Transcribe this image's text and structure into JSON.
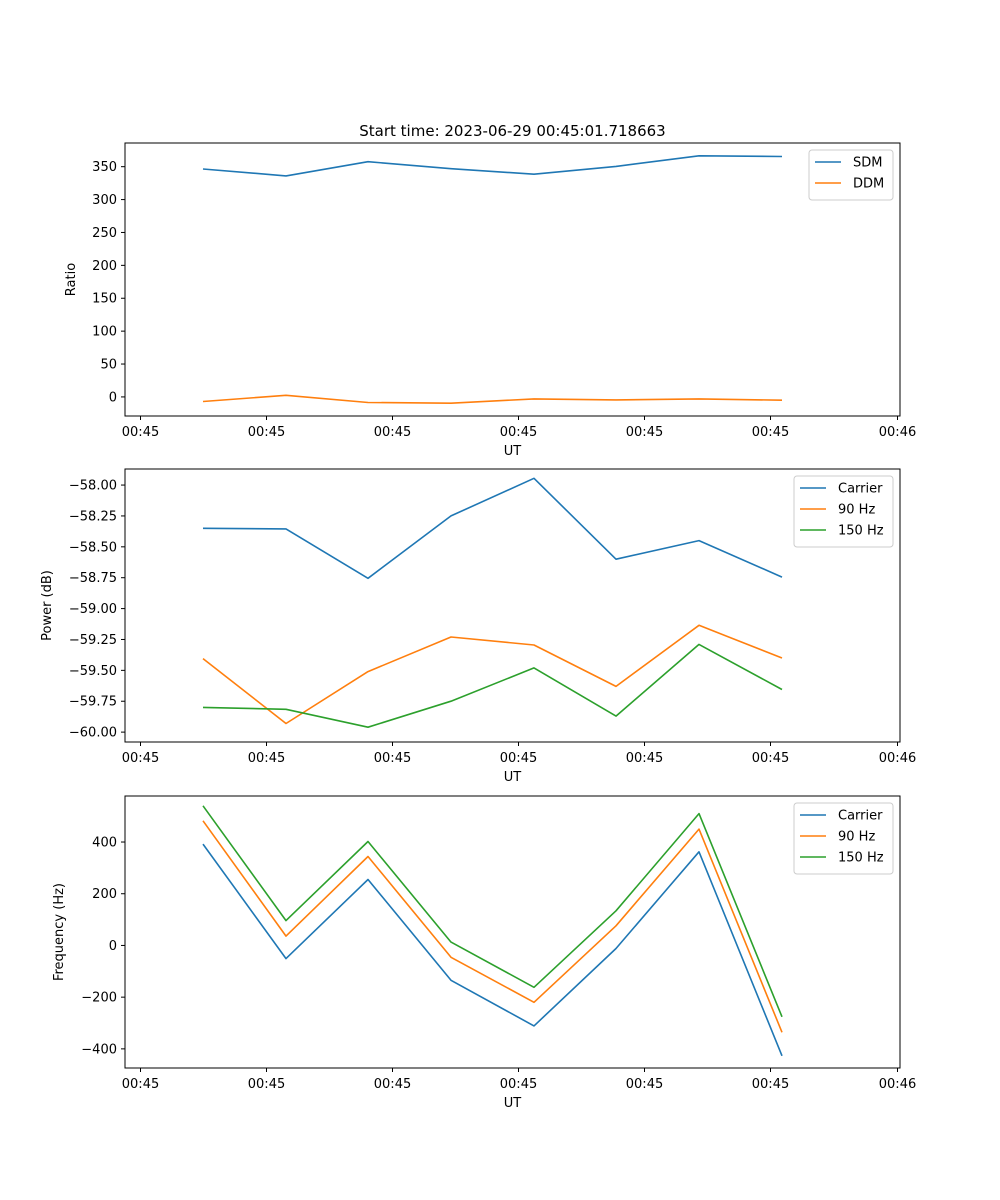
{
  "figure": {
    "title": "Start time: 2023-06-29 00:45:01.718663"
  },
  "chart_data": [
    {
      "type": "line",
      "title": "Start time: 2023-06-29 00:45:01.718663",
      "xlabel": "UT",
      "ylabel": "Ratio",
      "x_tick_labels": [
        "00:45",
        "00:45",
        "00:45",
        "00:45",
        "00:45",
        "00:45",
        "00:46"
      ],
      "y_ticks": [
        0,
        50,
        100,
        150,
        200,
        250,
        300,
        350
      ],
      "ylim": [
        -29,
        386
      ],
      "grid": false,
      "legend_position": "top-right",
      "series": [
        {
          "name": "SDM",
          "color": "#1f77b4",
          "values": [
            346.5,
            336,
            357.5,
            347,
            338.5,
            350.5,
            366.5,
            365.5
          ]
        },
        {
          "name": "DDM",
          "color": "#ff7f0e",
          "values": [
            -7,
            2.5,
            -8.5,
            -9.5,
            -3,
            -4.5,
            -3,
            -5
          ]
        }
      ]
    },
    {
      "type": "line",
      "title": "",
      "xlabel": "UT",
      "ylabel": "Power (dB)",
      "x_tick_labels": [
        "00:45",
        "00:45",
        "00:45",
        "00:45",
        "00:45",
        "00:45",
        "00:46"
      ],
      "y_ticks": [
        -60.0,
        -59.75,
        -59.5,
        -59.25,
        -59.0,
        -58.75,
        -58.5,
        -58.25,
        -58.0
      ],
      "y_tick_labels": [
        "−60.00",
        "−59.75",
        "−59.50",
        "−59.25",
        "−59.00",
        "−58.75",
        "−58.50",
        "−58.25",
        "−58.00"
      ],
      "ylim": [
        -60.08,
        -57.87
      ],
      "grid": false,
      "legend_position": "top-right",
      "series": [
        {
          "name": "Carrier",
          "color": "#1f77b4",
          "values": [
            -58.35,
            -58.355,
            -58.755,
            -58.25,
            -57.945,
            -58.6,
            -58.45,
            -58.745
          ]
        },
        {
          "name": "90 Hz",
          "color": "#ff7f0e",
          "values": [
            -59.405,
            -59.93,
            -59.51,
            -59.23,
            -59.295,
            -59.63,
            -59.135,
            -59.4
          ]
        },
        {
          "name": "150 Hz",
          "color": "#2ca02c",
          "values": [
            -59.8,
            -59.815,
            -59.96,
            -59.75,
            -59.48,
            -59.87,
            -59.29,
            -59.655
          ]
        }
      ]
    },
    {
      "type": "line",
      "title": "",
      "xlabel": "UT",
      "ylabel": "Frequency (Hz)",
      "x_tick_labels": [
        "00:45",
        "00:45",
        "00:45",
        "00:45",
        "00:45",
        "00:45",
        "00:46"
      ],
      "y_ticks": [
        -400,
        -200,
        0,
        200,
        400
      ],
      "y_tick_labels": [
        "−400",
        "−200",
        "0",
        "200",
        "400"
      ],
      "ylim": [
        -474,
        578
      ],
      "grid": false,
      "legend_position": "top-right",
      "series": [
        {
          "name": "Carrier",
          "color": "#1f77b4",
          "values": [
            392,
            -51,
            255,
            -135,
            -311,
            -12,
            362,
            -427
          ]
        },
        {
          "name": "90 Hz",
          "color": "#ff7f0e",
          "values": [
            482,
            36,
            344,
            -46,
            -220,
            76,
            450,
            -336
          ]
        },
        {
          "name": "150 Hz",
          "color": "#2ca02c",
          "values": [
            540,
            96,
            402,
            13,
            -162,
            134,
            510,
            -276
          ]
        }
      ]
    }
  ]
}
